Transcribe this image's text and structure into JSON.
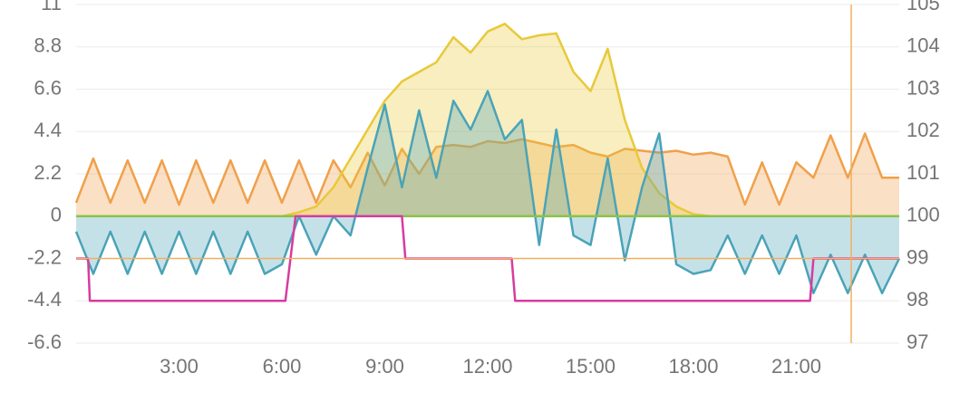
{
  "chart_data": {
    "type": "line",
    "x": [
      0,
      0.5,
      1,
      1.5,
      2,
      2.5,
      3,
      3.5,
      4,
      4.5,
      5,
      5.5,
      6,
      6.5,
      7,
      7.5,
      8,
      8.5,
      9,
      9.5,
      10,
      10.5,
      11,
      11.5,
      12,
      12.5,
      13,
      13.5,
      14,
      14.5,
      15,
      15.5,
      16,
      16.5,
      17,
      17.5,
      18,
      18.5,
      19,
      19.5,
      20,
      20.5,
      21,
      21.5,
      22,
      22.5,
      23,
      23.5,
      24
    ],
    "xlim": [
      0,
      24
    ],
    "xticks": [
      {
        "value": 3,
        "label": "3:00"
      },
      {
        "value": 6,
        "label": "6:00"
      },
      {
        "value": 9,
        "label": "9:00"
      },
      {
        "value": 12,
        "label": "12:00"
      },
      {
        "value": 15,
        "label": "15:00"
      },
      {
        "value": 18,
        "label": "18:00"
      },
      {
        "value": 21,
        "label": "21:00"
      }
    ],
    "ylim": [
      -6.6,
      11
    ],
    "yticks": [
      -6.6,
      -4.4,
      -2.2,
      0,
      2.2,
      4.4,
      6.6,
      8.8,
      11
    ],
    "y2lim": [
      97,
      105
    ],
    "y2ticks": [
      97,
      98,
      99,
      100,
      101,
      102,
      103,
      104,
      105
    ],
    "grid": true,
    "series": [
      {
        "color": "#f0a04b",
        "fill": true,
        "values": [
          0.7,
          3.0,
          0.7,
          2.9,
          0.7,
          2.9,
          0.6,
          2.9,
          0.7,
          2.9,
          0.7,
          2.9,
          0.7,
          2.9,
          0.7,
          2.9,
          1.5,
          3.3,
          1.6,
          3.5,
          2.2,
          3.6,
          3.7,
          3.6,
          3.9,
          3.8,
          4.0,
          3.8,
          3.6,
          3.7,
          3.3,
          3.1,
          3.5,
          3.4,
          3.3,
          3.4,
          3.2,
          3.3,
          3.1,
          0.6,
          2.8,
          0.6,
          2.8,
          2.0,
          4.2,
          2.0,
          4.3,
          2.0,
          2.0
        ]
      },
      {
        "color": "#e8c93a",
        "fill": true,
        "values": [
          0,
          0,
          0,
          0,
          0,
          0,
          0,
          0,
          0,
          0,
          0,
          0,
          0,
          0.2,
          0.5,
          1.5,
          3.0,
          4.5,
          6.0,
          7.0,
          7.5,
          8.0,
          9.3,
          8.5,
          9.6,
          10.0,
          9.2,
          9.4,
          9.5,
          7.5,
          6.5,
          8.7,
          5.0,
          2.5,
          1.2,
          0.5,
          0.1,
          0,
          0,
          0,
          0,
          0,
          0,
          0,
          0,
          0,
          0,
          0,
          0
        ]
      },
      {
        "color": "#4aa3b8",
        "fill": true,
        "values": [
          -0.8,
          -3.0,
          -0.8,
          -3.0,
          -0.8,
          -3.0,
          -0.8,
          -3.0,
          -0.8,
          -3.0,
          -0.8,
          -3.0,
          -2.5,
          0,
          -2.0,
          0,
          -1.0,
          2.5,
          5.8,
          1.5,
          5.5,
          2.0,
          6.0,
          4.5,
          6.5,
          4.0,
          5.0,
          -1.5,
          4.5,
          -1.0,
          -1.5,
          3.0,
          -2.3,
          1.5,
          4.3,
          -2.5,
          -3.0,
          -2.8,
          -1.0,
          -3.0,
          -1.0,
          -3.0,
          -1.0,
          -4.0,
          -2.0,
          -4.0,
          -2.0,
          -4.0,
          -2.2
        ]
      },
      {
        "color": "#8bc34a",
        "fill": false,
        "values": [
          0,
          0,
          0,
          0,
          0,
          0,
          0,
          0,
          0,
          0,
          0,
          0,
          0,
          0,
          0,
          0,
          0,
          0,
          0,
          0,
          0,
          0,
          0,
          0,
          0,
          0,
          0,
          0,
          0,
          0,
          0,
          0,
          0,
          0,
          0,
          0,
          0,
          0,
          0,
          0,
          0,
          0,
          0,
          0,
          0,
          0,
          0,
          0,
          0
        ]
      },
      {
        "color": "#d63ca0",
        "fill": false,
        "axis": "y2",
        "x": [
          0,
          0.35,
          0.4,
          6.1,
          6.4,
          9.5,
          9.6,
          12.7,
          12.8,
          21.4,
          21.5,
          24
        ],
        "values": [
          99,
          99,
          98,
          98,
          100,
          100,
          99,
          99,
          98,
          98,
          99,
          99
        ]
      }
    ],
    "reference_lines": [
      {
        "axis": "x",
        "value": 22.6,
        "color": "#f0b060"
      },
      {
        "axis": "y",
        "value": -2.2,
        "color": "#f0b060"
      }
    ]
  }
}
